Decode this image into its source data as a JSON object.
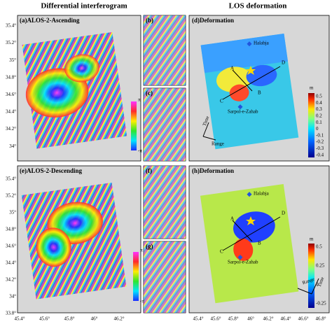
{
  "titles": {
    "left": "Differential interferogram",
    "right": "LOS deformation"
  },
  "panels": [
    {
      "label": "(a)ALOS-2-Ascending"
    },
    {
      "label": "(b)"
    },
    {
      "label": "(c)"
    },
    {
      "label": "(d)Deformation"
    },
    {
      "label": "(e)ALOS-2-Descending"
    },
    {
      "label": "(f)"
    },
    {
      "label": "(g)"
    },
    {
      "label": "(h)Deformation"
    }
  ],
  "lat_ticks_top": [
    "35.4°",
    "35.2°",
    "35°",
    "34.8°",
    "34.6°",
    "34.4°",
    "34.2°",
    "34°"
  ],
  "lat_ticks_bottom": [
    "35.4°",
    "35.2°",
    "35°",
    "34.8°",
    "34.6°",
    "34.4°",
    "34.2°",
    "34°",
    "33.8°"
  ],
  "lon_ticks_left": [
    "45.4°",
    "45.6°",
    "45.8°",
    "46°",
    "46.2°"
  ],
  "lon_ticks_right": [
    "45.4°",
    "45.6°",
    "45.8°",
    "46°",
    "46.2°",
    "46.4°",
    "46.6°",
    "46.8°"
  ],
  "phase_colorbar": {
    "max": "π",
    "min": "-π"
  },
  "colorbar_d": {
    "unit": "m",
    "ticks": [
      "0.5",
      "0.4",
      "0.3",
      "0.2",
      "0.1",
      "0",
      "-0.1",
      "-0.2",
      "-0.3",
      "-0.4"
    ]
  },
  "colorbar_h": {
    "unit": "m",
    "ticks": [
      "0.5",
      "0.25",
      "0",
      "-0.25"
    ]
  },
  "places": {
    "halabja": "Halabja",
    "sarpol": "Sarpol-e-Zahab"
  },
  "profile_points": [
    "A",
    "B",
    "C",
    "D"
  ],
  "arrows": {
    "time": "Time",
    "range": "Range"
  }
}
